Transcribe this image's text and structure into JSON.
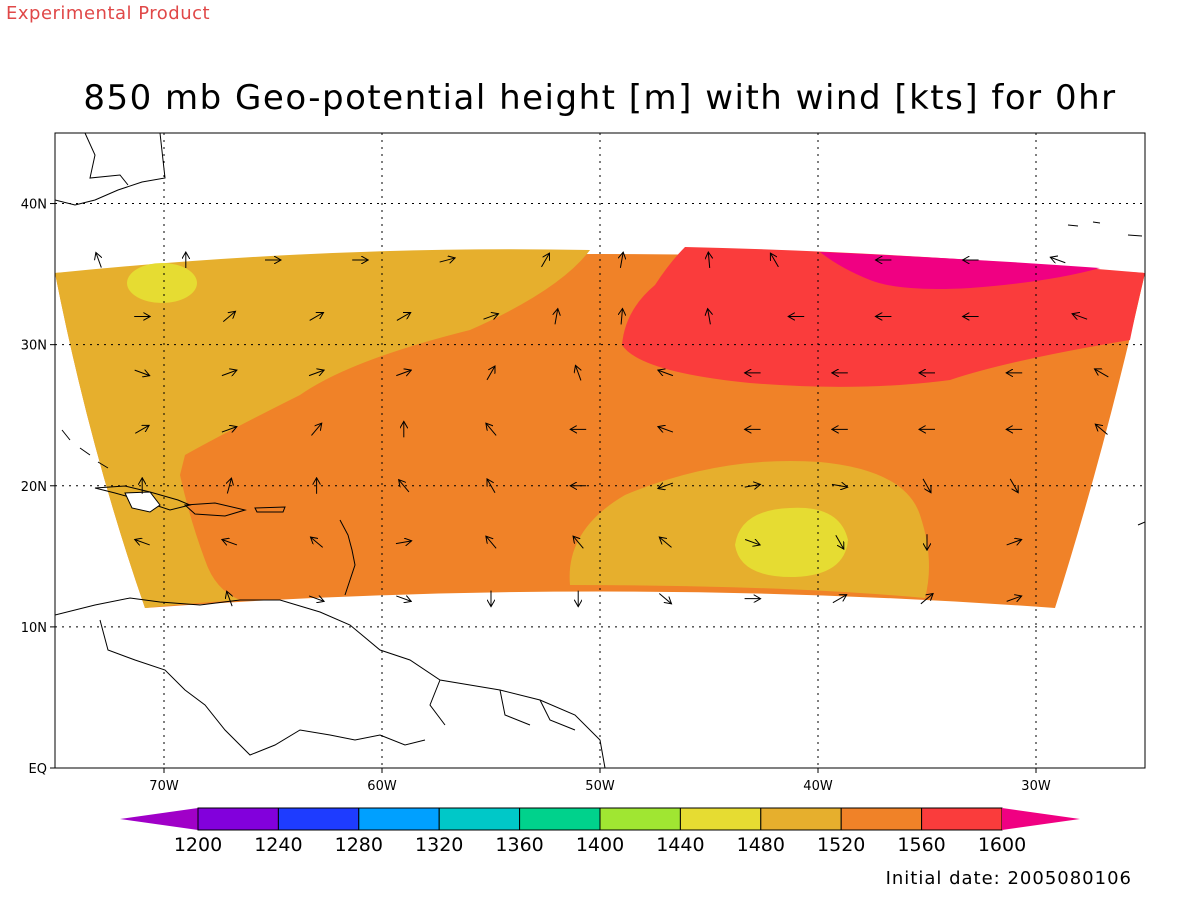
{
  "header": {
    "experimental": "Experimental Product",
    "title": "850 mb Geo-potential height [m] with wind [kts] for 0hr"
  },
  "footer": {
    "initial_date": "Initial date: 2005080106"
  },
  "map": {
    "lon_range": [
      -75,
      -25
    ],
    "lat_range": [
      0,
      45
    ],
    "lat_ticks": [
      {
        "value": 40,
        "label": "40N"
      },
      {
        "value": 30,
        "label": "30N"
      },
      {
        "value": 20,
        "label": "20N"
      },
      {
        "value": 10,
        "label": "10N"
      },
      {
        "value": 0,
        "label": "EQ"
      }
    ],
    "lon_ticks": [
      {
        "value": -70,
        "label": "70W"
      },
      {
        "value": -60,
        "label": "60W"
      },
      {
        "value": -50,
        "label": "50W"
      },
      {
        "value": -40,
        "label": "40W"
      },
      {
        "value": -30,
        "label": "30W"
      }
    ],
    "grid": true,
    "height_field": {
      "units": "m",
      "base_level": "1520-1560",
      "regions": [
        {
          "level": "1480-1520",
          "area": "northwest"
        },
        {
          "level": "1480-1520",
          "area": "southwest"
        },
        {
          "level": "1480-1520",
          "area": "south-central"
        },
        {
          "level": "1440-1480",
          "area": "northwest-cell"
        },
        {
          "level": "1440-1480",
          "area": "south-central-cell"
        },
        {
          "level": "1560-1600",
          "area": "northeast"
        },
        {
          "level": ">1600",
          "area": "far-northeast"
        }
      ]
    }
  },
  "colorbar": {
    "levels": [
      "1200",
      "1240",
      "1280",
      "1320",
      "1360",
      "1400",
      "1440",
      "1480",
      "1520",
      "1560",
      "1600"
    ],
    "colors": [
      "#a000c8",
      "#8200dc",
      "#1e3cff",
      "#00a0ff",
      "#00c8c8",
      "#00d28c",
      "#a0e632",
      "#e6dc32",
      "#e6af2d",
      "#f08228",
      "#fa3c3c",
      "#f00082"
    ]
  }
}
